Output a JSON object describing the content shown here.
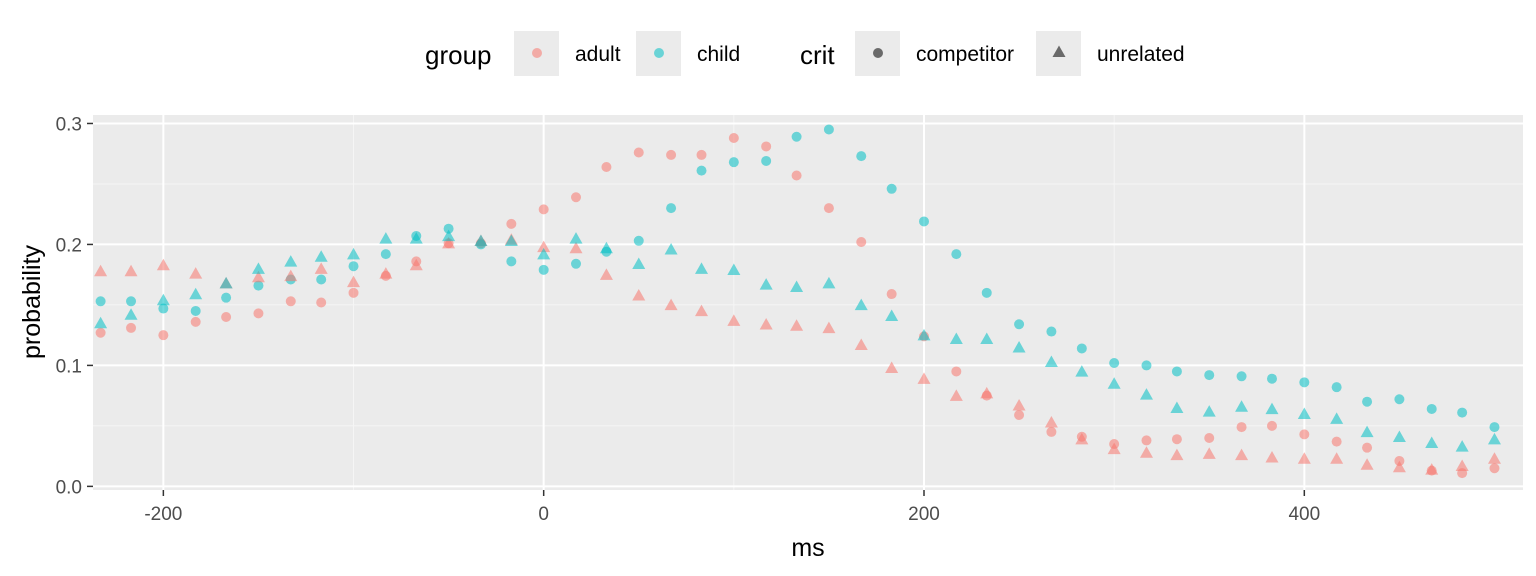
{
  "chart_data": {
    "type": "scatter",
    "xlabel": "ms",
    "ylabel": "probability",
    "xlim": [
      -237,
      515
    ],
    "ylim": [
      -0.003,
      0.307
    ],
    "xticks": [
      -200,
      0,
      200,
      400
    ],
    "yticks": [
      0.0,
      0.1,
      0.2,
      0.3
    ],
    "xtick_labels": [
      "-200",
      "0",
      "200",
      "400"
    ],
    "ytick_labels": [
      "0.0",
      "0.1",
      "0.2",
      "0.3"
    ],
    "grid": true,
    "legend_position": "top",
    "legend": {
      "color_title": "group",
      "shape_title": "crit",
      "groups": [
        {
          "name": "adult",
          "color": "#F8766D"
        },
        {
          "name": "child",
          "color": "#00BFC4"
        }
      ],
      "crits": [
        {
          "name": "competitor",
          "shape": "circle"
        },
        {
          "name": "unrelated",
          "shape": "triangle"
        }
      ]
    },
    "x": [
      -233,
      -217,
      -200,
      -183,
      -167,
      -150,
      -133,
      -117,
      -100,
      -83,
      -67,
      -50,
      -33,
      -17,
      0,
      17,
      33,
      50,
      67,
      83,
      100,
      117,
      133,
      150,
      167,
      183,
      200,
      217,
      233,
      250,
      267,
      283,
      300,
      317,
      333,
      350,
      367,
      383,
      400,
      417,
      433,
      450,
      467,
      483,
      500
    ],
    "series": [
      {
        "name": "adult",
        "crit": "competitor",
        "color": "#F8766D",
        "shape": "circle",
        "values": [
          0.127,
          0.131,
          0.125,
          0.136,
          0.14,
          0.143,
          0.153,
          0.152,
          0.16,
          0.174,
          0.186,
          0.201,
          0.201,
          0.217,
          0.229,
          0.239,
          0.264,
          0.276,
          0.274,
          0.274,
          0.288,
          0.281,
          0.257,
          0.23,
          0.202,
          0.159,
          0.124,
          0.095,
          0.075,
          0.059,
          0.045,
          0.041,
          0.035,
          0.038,
          0.039,
          0.04,
          0.049,
          0.05,
          0.043,
          0.037,
          0.032,
          0.021,
          0.013,
          0.011,
          0.015
        ]
      },
      {
        "name": "child",
        "crit": "competitor",
        "color": "#00BFC4",
        "shape": "circle",
        "values": [
          0.153,
          0.153,
          0.147,
          0.145,
          0.156,
          0.166,
          0.171,
          0.171,
          0.182,
          0.192,
          0.207,
          0.213,
          0.2,
          0.186,
          0.179,
          0.184,
          0.194,
          0.203,
          0.23,
          0.261,
          0.268,
          0.269,
          0.289,
          0.295,
          0.273,
          0.246,
          0.219,
          0.192,
          0.16,
          0.134,
          0.128,
          0.114,
          0.102,
          0.1,
          0.095,
          0.092,
          0.091,
          0.089,
          0.086,
          0.082,
          0.07,
          0.072,
          0.064,
          0.061,
          0.049
        ]
      },
      {
        "name": "adult",
        "crit": "unrelated",
        "color": "#F8766D",
        "shape": "triangle",
        "values": [
          0.177,
          0.177,
          0.182,
          0.175,
          0.167,
          0.172,
          0.173,
          0.179,
          0.168,
          0.175,
          0.182,
          0.2,
          0.202,
          0.203,
          0.197,
          0.196,
          0.174,
          0.157,
          0.149,
          0.144,
          0.136,
          0.133,
          0.132,
          0.13,
          0.116,
          0.097,
          0.088,
          0.074,
          0.076,
          0.066,
          0.052,
          0.038,
          0.03,
          0.027,
          0.025,
          0.026,
          0.025,
          0.023,
          0.022,
          0.022,
          0.017,
          0.015,
          0.013,
          0.016,
          0.022
        ]
      },
      {
        "name": "child",
        "crit": "unrelated",
        "color": "#00BFC4",
        "shape": "triangle",
        "values": [
          0.134,
          0.141,
          0.153,
          0.158,
          0.167,
          0.179,
          0.185,
          0.189,
          0.191,
          0.204,
          0.204,
          0.206,
          0.202,
          0.202,
          0.191,
          0.204,
          0.196,
          0.183,
          0.195,
          0.179,
          0.178,
          0.166,
          0.164,
          0.167,
          0.149,
          0.14,
          0.124,
          0.121,
          0.121,
          0.114,
          0.102,
          0.094,
          0.084,
          0.075,
          0.064,
          0.061,
          0.065,
          0.063,
          0.059,
          0.055,
          0.044,
          0.04,
          0.035,
          0.032,
          0.038
        ]
      }
    ]
  }
}
